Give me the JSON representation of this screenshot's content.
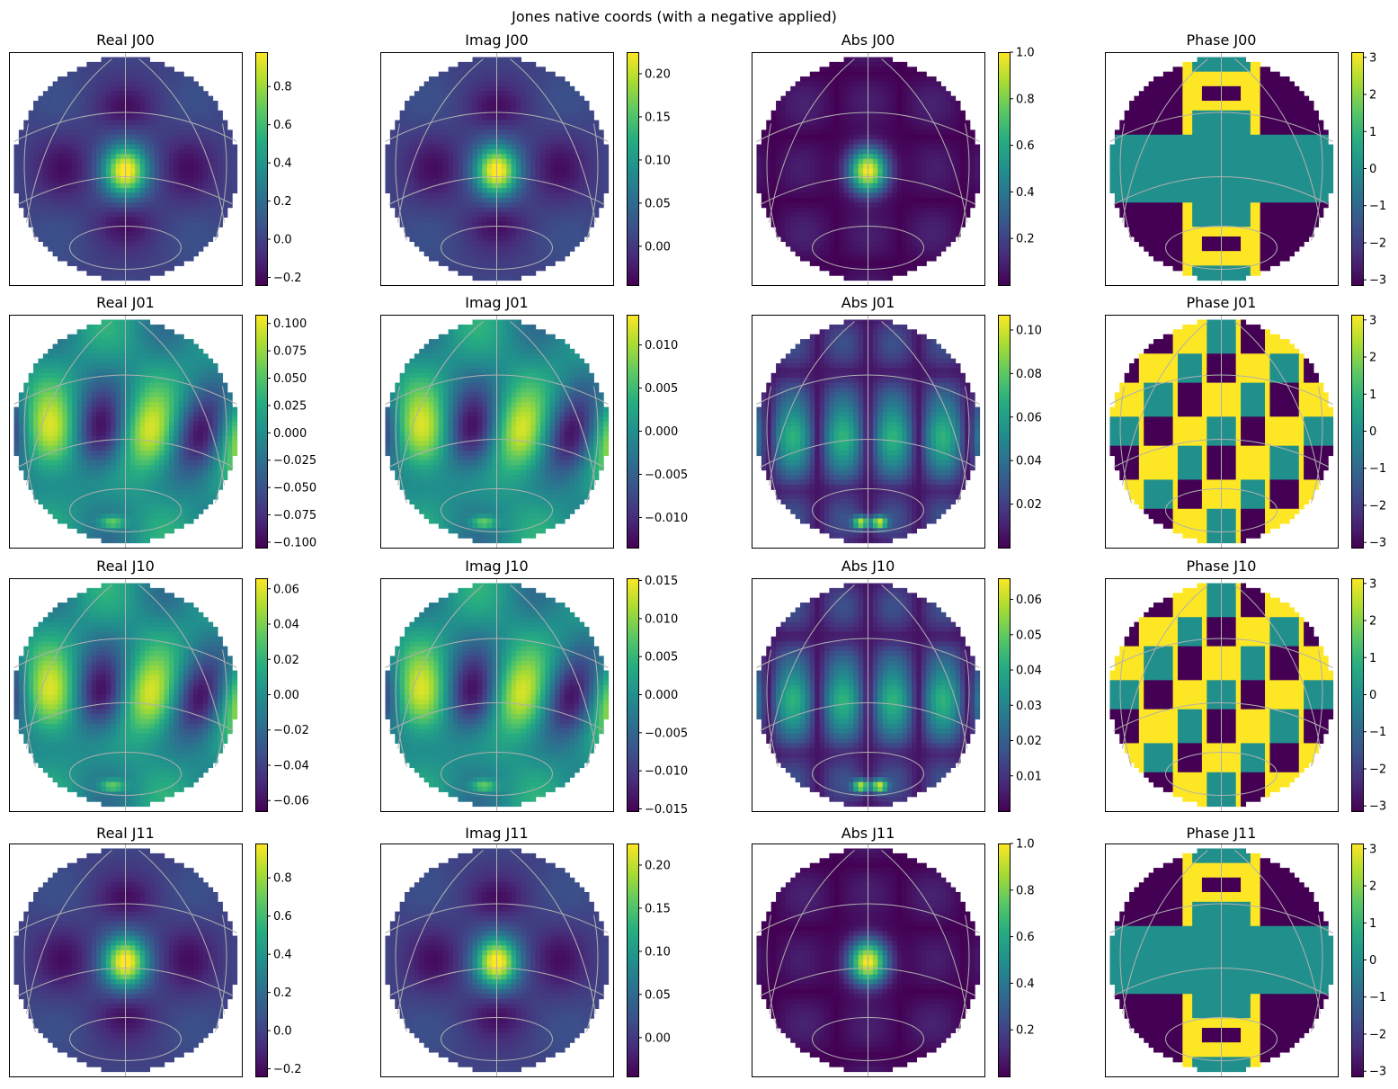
{
  "figure": {
    "suptitle": "Jones native coords (with a negative applied)"
  },
  "chart_data": [
    {
      "type": "heatmap",
      "title": "Real J00",
      "colormap": "viridis",
      "clim": [
        -0.24,
        0.98
      ],
      "colorbar_ticks": [
        "0.8",
        "0.6",
        "0.4",
        "0.2",
        "0.0",
        "−0.2"
      ],
      "colorbar_tick_values": [
        0.8,
        0.6,
        0.4,
        0.2,
        0.0,
        -0.2
      ],
      "pattern": "main"
    },
    {
      "type": "heatmap",
      "title": "Imag J00",
      "colormap": "viridis",
      "clim": [
        -0.045,
        0.225
      ],
      "colorbar_ticks": [
        "0.20",
        "0.15",
        "0.10",
        "0.05",
        "0.00"
      ],
      "colorbar_tick_values": [
        0.2,
        0.15,
        0.1,
        0.05,
        0.0
      ],
      "pattern": "main"
    },
    {
      "type": "heatmap",
      "title": "Abs J00",
      "colormap": "viridis",
      "clim": [
        0.0,
        1.0
      ],
      "colorbar_ticks": [
        "1.0",
        "0.8",
        "0.6",
        "0.4",
        "0.2"
      ],
      "colorbar_tick_values": [
        1.0,
        0.8,
        0.6,
        0.4,
        0.2
      ],
      "pattern": "abs_main"
    },
    {
      "type": "heatmap",
      "title": "Phase J00",
      "colormap": "viridis",
      "clim": [
        -3.14,
        3.14
      ],
      "colorbar_ticks": [
        "3",
        "2",
        "1",
        "0",
        "−1",
        "−2",
        "−3"
      ],
      "colorbar_tick_values": [
        3,
        2,
        1,
        0,
        -1,
        -2,
        -3
      ],
      "pattern": "phase_main"
    },
    {
      "type": "heatmap",
      "title": "Real J01",
      "colormap": "viridis",
      "clim": [
        -0.105,
        0.108
      ],
      "colorbar_ticks": [
        "0.100",
        "0.075",
        "0.050",
        "0.025",
        "0.000",
        "−0.025",
        "−0.050",
        "−0.075",
        "−0.100"
      ],
      "colorbar_tick_values": [
        0.1,
        0.075,
        0.05,
        0.025,
        0.0,
        -0.025,
        -0.05,
        -0.075,
        -0.1
      ],
      "pattern": "cross"
    },
    {
      "type": "heatmap",
      "title": "Imag J01",
      "colormap": "viridis",
      "clim": [
        -0.0135,
        0.0135
      ],
      "colorbar_ticks": [
        "0.010",
        "0.005",
        "0.000",
        "−0.005",
        "−0.010"
      ],
      "colorbar_tick_values": [
        0.01,
        0.005,
        0.0,
        -0.005,
        -0.01
      ],
      "pattern": "cross"
    },
    {
      "type": "heatmap",
      "title": "Abs J01",
      "colormap": "viridis",
      "clim": [
        0.0,
        0.107
      ],
      "colorbar_ticks": [
        "0.10",
        "0.08",
        "0.06",
        "0.04",
        "0.02"
      ],
      "colorbar_tick_values": [
        0.1,
        0.08,
        0.06,
        0.04,
        0.02
      ],
      "pattern": "abs_cross"
    },
    {
      "type": "heatmap",
      "title": "Phase J01",
      "colormap": "viridis",
      "clim": [
        -3.14,
        3.14
      ],
      "colorbar_ticks": [
        "3",
        "2",
        "1",
        "0",
        "−1",
        "−2",
        "−3"
      ],
      "colorbar_tick_values": [
        3,
        2,
        1,
        0,
        -1,
        -2,
        -3
      ],
      "pattern": "phase_cross"
    },
    {
      "type": "heatmap",
      "title": "Real J10",
      "colormap": "viridis",
      "clim": [
        -0.066,
        0.066
      ],
      "colorbar_ticks": [
        "0.06",
        "0.04",
        "0.02",
        "0.00",
        "−0.02",
        "−0.04",
        "−0.06"
      ],
      "colorbar_tick_values": [
        0.06,
        0.04,
        0.02,
        0.0,
        -0.02,
        -0.04,
        -0.06
      ],
      "pattern": "cross"
    },
    {
      "type": "heatmap",
      "title": "Imag J10",
      "colormap": "viridis",
      "clim": [
        -0.0153,
        0.0153
      ],
      "colorbar_ticks": [
        "0.015",
        "0.010",
        "0.005",
        "0.000",
        "−0.005",
        "−0.010",
        "−0.015"
      ],
      "colorbar_tick_values": [
        0.015,
        0.01,
        0.005,
        0.0,
        -0.005,
        -0.01,
        -0.015
      ],
      "pattern": "cross"
    },
    {
      "type": "heatmap",
      "title": "Abs J10",
      "colormap": "viridis",
      "clim": [
        0.0,
        0.066
      ],
      "colorbar_ticks": [
        "0.06",
        "0.05",
        "0.04",
        "0.03",
        "0.02",
        "0.01"
      ],
      "colorbar_tick_values": [
        0.06,
        0.05,
        0.04,
        0.03,
        0.02,
        0.01
      ],
      "pattern": "abs_cross"
    },
    {
      "type": "heatmap",
      "title": "Phase J10",
      "colormap": "viridis",
      "clim": [
        -3.14,
        3.14
      ],
      "colorbar_ticks": [
        "3",
        "2",
        "1",
        "0",
        "−1",
        "−2",
        "−3"
      ],
      "colorbar_tick_values": [
        3,
        2,
        1,
        0,
        -1,
        -2,
        -3
      ],
      "pattern": "phase_cross"
    },
    {
      "type": "heatmap",
      "title": "Real J11",
      "colormap": "viridis",
      "clim": [
        -0.24,
        0.98
      ],
      "colorbar_ticks": [
        "0.8",
        "0.6",
        "0.4",
        "0.2",
        "0.0",
        "−0.2"
      ],
      "colorbar_tick_values": [
        0.8,
        0.6,
        0.4,
        0.2,
        0.0,
        -0.2
      ],
      "pattern": "main"
    },
    {
      "type": "heatmap",
      "title": "Imag J11",
      "colormap": "viridis",
      "clim": [
        -0.045,
        0.225
      ],
      "colorbar_ticks": [
        "0.20",
        "0.15",
        "0.10",
        "0.05",
        "0.00"
      ],
      "colorbar_tick_values": [
        0.2,
        0.15,
        0.1,
        0.05,
        0.0
      ],
      "pattern": "main"
    },
    {
      "type": "heatmap",
      "title": "Abs J11",
      "colormap": "viridis",
      "clim": [
        0.0,
        1.0
      ],
      "colorbar_ticks": [
        "1.0",
        "0.8",
        "0.6",
        "0.4",
        "0.2"
      ],
      "colorbar_tick_values": [
        1.0,
        0.8,
        0.6,
        0.4,
        0.2
      ],
      "pattern": "abs_main"
    },
    {
      "type": "heatmap",
      "title": "Phase J11",
      "colormap": "viridis",
      "clim": [
        -3.14,
        3.14
      ],
      "colorbar_ticks": [
        "3",
        "2",
        "1",
        "0",
        "−1",
        "−2",
        "−3"
      ],
      "colorbar_tick_values": [
        3,
        2,
        1,
        0,
        -1,
        -2,
        -3
      ],
      "pattern": "phase_main"
    }
  ]
}
